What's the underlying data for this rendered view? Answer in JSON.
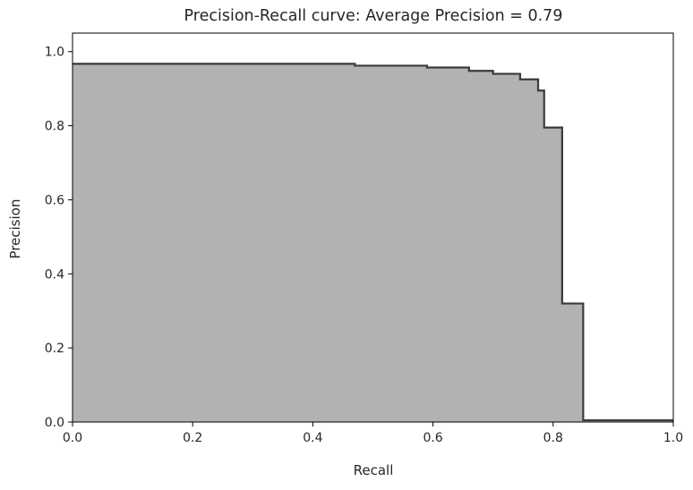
{
  "chart_data": {
    "type": "area",
    "title": "Precision-Recall curve: Average Precision = 0.79",
    "xlabel": "Recall",
    "ylabel": "Precision",
    "xlim": [
      0.0,
      1.0
    ],
    "ylim": [
      0.0,
      1.05
    ],
    "xticks": [
      "0.0",
      "0.2",
      "0.4",
      "0.6",
      "0.8",
      "1.0"
    ],
    "yticks": [
      "0.0",
      "0.2",
      "0.4",
      "0.6",
      "0.8",
      "1.0"
    ],
    "grid": false,
    "fill_color": "#b2b2b2",
    "line_color": "#3a3a3a",
    "step": "post",
    "x": [
      0.0,
      0.47,
      0.59,
      0.66,
      0.7,
      0.745,
      0.775,
      0.785,
      0.815,
      0.85,
      1.0
    ],
    "y": [
      0.967,
      0.962,
      0.957,
      0.948,
      0.94,
      0.925,
      0.895,
      0.795,
      0.32,
      0.005,
      0.005
    ]
  }
}
